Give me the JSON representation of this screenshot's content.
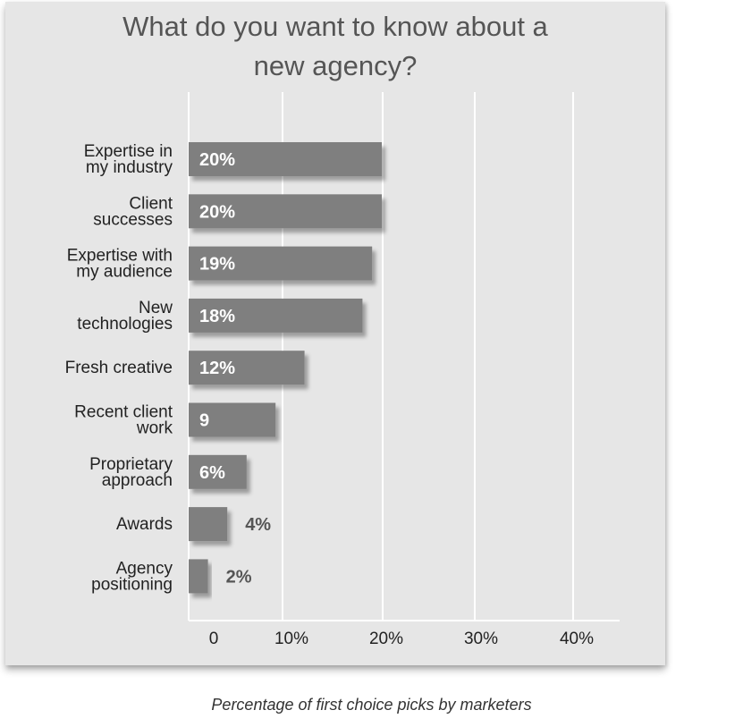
{
  "chart_data": {
    "type": "bar",
    "orientation": "horizontal",
    "title": "What do you want to know about a\nnew agency?",
    "caption": "Percentage of first choice picks by marketers",
    "categories": [
      "Expertise in\nmy industry",
      "Client\nsuccesses",
      "Expertise with\nmy audience",
      "New\ntechnologies",
      "Fresh creative",
      "Recent client\nwork",
      "Proprietary\napproach",
      "Awards",
      "Agency\npositioning"
    ],
    "values": [
      20,
      20,
      19,
      18,
      12,
      9,
      6,
      4,
      2
    ],
    "value_labels": [
      "20%",
      "20%",
      "19%",
      "18%",
      "12%",
      "9",
      "6%",
      "4%",
      "2%"
    ],
    "x_ticks": [
      0,
      10,
      20,
      30,
      40
    ],
    "x_tick_labels": [
      "0",
      "10%",
      "20%",
      "30%",
      "40%"
    ],
    "xlim": [
      0,
      45
    ],
    "grid": "vertical",
    "legend": "none",
    "colors": {
      "bar": "#7f7f7f",
      "panel_background": "#e6e6e6",
      "gridline": "#ffffff",
      "title": "#555555",
      "label_inside": "#ffffff",
      "label_outside": "#555555",
      "text": "#222222"
    }
  }
}
